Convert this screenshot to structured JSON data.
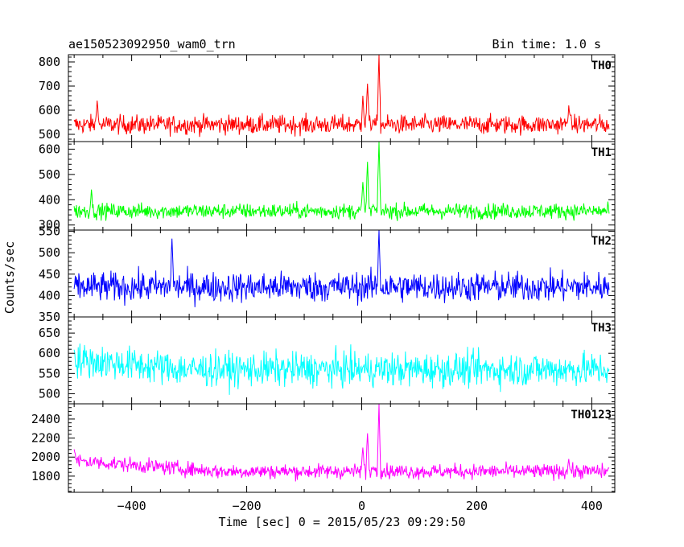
{
  "header": {
    "title": "ae150523092950_wam0_trn",
    "bin_time": "Bin time: 1.0 s"
  },
  "chart_data": {
    "type": "line",
    "title": "ae150523092950_wam0_trn",
    "xlabel": "Time [sec] 0 = 2015/05/23 09:29:50",
    "ylabel": "Counts/sec",
    "xlim": [
      -510,
      440
    ],
    "x_ticks": [
      -400,
      -200,
      0,
      200,
      400
    ],
    "x_range_data": [
      -500,
      430
    ],
    "bin_time_s": 1.0,
    "grid": false,
    "panels": [
      {
        "name": "TH0",
        "color": "#ff0000",
        "ylim": [
          470,
          830
        ],
        "yticks": [
          500,
          600,
          700,
          800
        ],
        "baseline": 540,
        "noise": 28,
        "features": [
          {
            "x": -460,
            "value": 640
          },
          {
            "x": 2,
            "value": 660
          },
          {
            "x": 10,
            "value": 710
          },
          {
            "x": 20,
            "value": 560
          },
          {
            "x": 30,
            "value": 830
          },
          {
            "x": 360,
            "value": 620
          }
        ]
      },
      {
        "name": "TH1",
        "color": "#00ff00",
        "ylim": [
          280,
          630
        ],
        "yticks": [
          300,
          400,
          500,
          600
        ],
        "baseline": 355,
        "noise": 22,
        "features": [
          {
            "x": -470,
            "value": 440
          },
          {
            "x": 2,
            "value": 470
          },
          {
            "x": 10,
            "value": 550
          },
          {
            "x": 20,
            "value": 380
          },
          {
            "x": 30,
            "value": 630
          }
        ]
      },
      {
        "name": "TH2",
        "color": "#0000ff",
        "ylim": [
          350,
          553
        ],
        "yticks": [
          350,
          400,
          450,
          500,
          550
        ],
        "baseline": 420,
        "noise": 25,
        "features": [
          {
            "x": -330,
            "value": 533
          },
          {
            "x": 30,
            "value": 553
          }
        ]
      },
      {
        "name": "TH3",
        "color": "#00ffff",
        "ylim": [
          475,
          690
        ],
        "yticks": [
          500,
          550,
          600,
          650
        ],
        "baseline": 560,
        "noise": 30,
        "features": [
          {
            "x": -500,
            "value": 585
          },
          {
            "x": -300,
            "value": 570
          },
          {
            "x": 430,
            "value": 560
          }
        ]
      },
      {
        "name": "TH0123",
        "color": "#ff00ff",
        "ylim": [
          1630,
          2560
        ],
        "yticks": [
          1800,
          2000,
          2200,
          2400
        ],
        "baseline": 1850,
        "noise": 55,
        "features": [
          {
            "x": -500,
            "value": 1970
          },
          {
            "x": 2,
            "value": 2100
          },
          {
            "x": 10,
            "value": 2250
          },
          {
            "x": 20,
            "value": 1900
          },
          {
            "x": 30,
            "value": 2560
          },
          {
            "x": 360,
            "value": 1980
          }
        ]
      }
    ]
  }
}
